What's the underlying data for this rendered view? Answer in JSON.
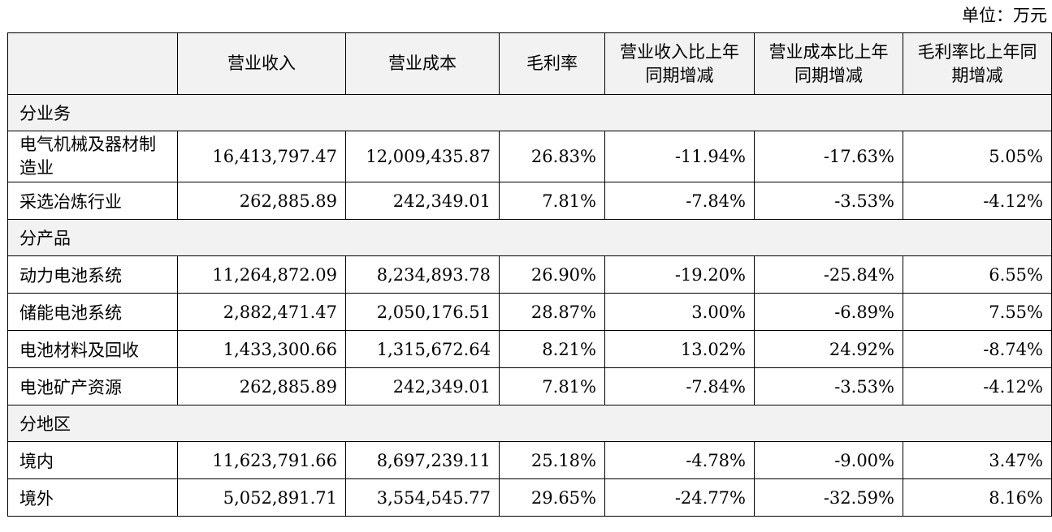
{
  "unit_label": "单位：万元",
  "headers": [
    "",
    "营业收入",
    "营业成本",
    "毛利率",
    "营业收入比上年同期增减",
    "营业成本比上年同期增减",
    "毛利率比上年同期增减"
  ],
  "sections": [
    {
      "title": "分业务",
      "rows": [
        {
          "label": "电气机械及器材制造业",
          "revenue": "16,413,797.47",
          "cost": "12,009,435.87",
          "margin": "26.83%",
          "rev_change": "-11.94%",
          "cost_change": "-17.63%",
          "margin_change": "5.05%"
        },
        {
          "label": "采选冶炼行业",
          "revenue": "262,885.89",
          "cost": "242,349.01",
          "margin": "7.81%",
          "rev_change": "-7.84%",
          "cost_change": "-3.53%",
          "margin_change": "-4.12%"
        }
      ]
    },
    {
      "title": "分产品",
      "rows": [
        {
          "label": "动力电池系统",
          "revenue": "11,264,872.09",
          "cost": "8,234,893.78",
          "margin": "26.90%",
          "rev_change": "-19.20%",
          "cost_change": "-25.84%",
          "margin_change": "6.55%"
        },
        {
          "label": "储能电池系统",
          "revenue": "2,882,471.47",
          "cost": "2,050,176.51",
          "margin": "28.87%",
          "rev_change": "3.00%",
          "cost_change": "-6.89%",
          "margin_change": "7.55%"
        },
        {
          "label": "电池材料及回收",
          "revenue": "1,433,300.66",
          "cost": "1,315,672.64",
          "margin": "8.21%",
          "rev_change": "13.02%",
          "cost_change": "24.92%",
          "margin_change": "-8.74%"
        },
        {
          "label": "电池矿产资源",
          "revenue": "262,885.89",
          "cost": "242,349.01",
          "margin": "7.81%",
          "rev_change": "-7.84%",
          "cost_change": "-3.53%",
          "margin_change": "-4.12%"
        }
      ]
    },
    {
      "title": "分地区",
      "rows": [
        {
          "label": "境内",
          "revenue": "11,623,791.66",
          "cost": "8,697,239.11",
          "margin": "25.18%",
          "rev_change": "-4.78%",
          "cost_change": "-9.00%",
          "margin_change": "3.47%"
        },
        {
          "label": "境外",
          "revenue": "5,052,891.71",
          "cost": "3,554,545.77",
          "margin": "29.65%",
          "rev_change": "-24.77%",
          "cost_change": "-32.59%",
          "margin_change": "8.16%"
        }
      ]
    }
  ]
}
